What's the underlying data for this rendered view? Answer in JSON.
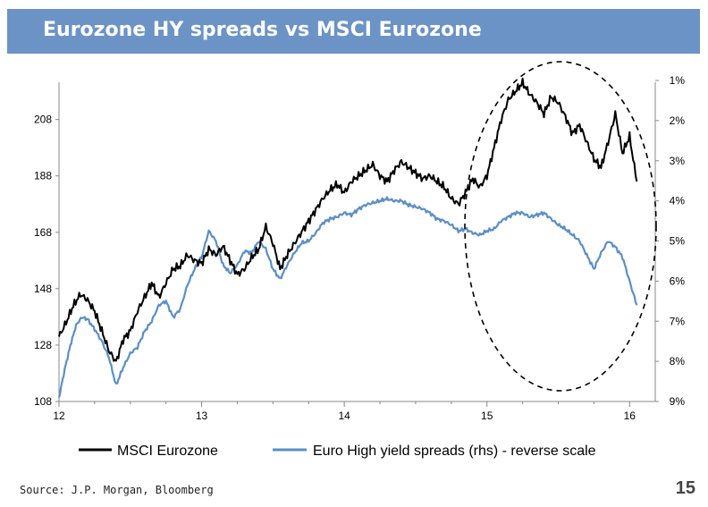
{
  "page": {
    "title": "Eurozone HY spreads vs MSCI Eurozone",
    "source": "Source: J.P. Morgan, Bloomberg",
    "page_number": "15"
  },
  "colors": {
    "title_bar": "#6b93c6",
    "msci": "#000000",
    "spreads": "#5b8fc7"
  },
  "chart_data": {
    "type": "line",
    "title": "Eurozone HY spreads vs MSCI Eurozone",
    "x_tick_labels": [
      "12",
      "13",
      "14",
      "15",
      "16"
    ],
    "x_tick_values": [
      12,
      13,
      14,
      15,
      16
    ],
    "xlim": [
      12,
      16.18
    ],
    "y_left": {
      "tick_labels": [
        "108",
        "128",
        "148",
        "168",
        "188",
        "208"
      ],
      "tick_values": [
        108,
        128,
        148,
        168,
        188,
        208
      ],
      "ylim": [
        108,
        225
      ]
    },
    "y_right": {
      "tick_labels": [
        "1%",
        "2%",
        "3%",
        "4%",
        "5%",
        "6%",
        "7%",
        "8%",
        "9%"
      ],
      "tick_values": [
        1,
        2,
        3,
        4,
        5,
        6,
        7,
        8,
        9
      ],
      "ylim": [
        1,
        9
      ],
      "reversed": true
    },
    "series": [
      {
        "name": "MSCI Eurozone",
        "axis": "left",
        "x": [
          12.0,
          12.05,
          12.1,
          12.15,
          12.2,
          12.25,
          12.3,
          12.35,
          12.4,
          12.45,
          12.5,
          12.55,
          12.6,
          12.65,
          12.7,
          12.75,
          12.8,
          12.85,
          12.9,
          12.95,
          13.0,
          13.05,
          13.1,
          13.15,
          13.2,
          13.25,
          13.3,
          13.35,
          13.4,
          13.45,
          13.5,
          13.55,
          13.6,
          13.65,
          13.7,
          13.75,
          13.8,
          13.85,
          13.9,
          13.95,
          14.0,
          14.05,
          14.1,
          14.15,
          14.2,
          14.25,
          14.3,
          14.35,
          14.4,
          14.45,
          14.5,
          14.55,
          14.6,
          14.65,
          14.7,
          14.75,
          14.8,
          14.85,
          14.9,
          14.95,
          15.0,
          15.05,
          15.1,
          15.15,
          15.2,
          15.25,
          15.3,
          15.35,
          15.4,
          15.45,
          15.5,
          15.55,
          15.6,
          15.65,
          15.7,
          15.75,
          15.8,
          15.85,
          15.9,
          15.95,
          16.0,
          16.05
        ],
        "values": [
          131,
          136,
          142,
          146,
          144,
          140,
          133,
          126,
          122,
          130,
          133,
          140,
          145,
          150,
          145,
          150,
          155,
          156,
          160,
          158,
          157,
          162,
          160,
          163,
          158,
          153,
          155,
          159,
          162,
          170,
          164,
          155,
          160,
          164,
          168,
          172,
          176,
          180,
          183,
          185,
          182,
          186,
          188,
          190,
          192,
          188,
          186,
          190,
          193,
          191,
          189,
          187,
          188,
          186,
          184,
          180,
          178,
          182,
          187,
          184,
          188,
          198,
          208,
          215,
          218,
          221,
          217,
          214,
          210,
          216,
          214,
          209,
          203,
          206,
          200,
          194,
          191,
          200,
          210,
          196,
          202,
          186
        ]
      },
      {
        "name": "Euro High yield spreads (rhs) - reverse scale",
        "axis": "right",
        "x": [
          12.0,
          12.04,
          12.08,
          12.12,
          12.16,
          12.2,
          12.25,
          12.3,
          12.35,
          12.4,
          12.45,
          12.5,
          12.55,
          12.6,
          12.65,
          12.7,
          12.75,
          12.8,
          12.85,
          12.9,
          12.95,
          13.0,
          13.05,
          13.1,
          13.15,
          13.2,
          13.25,
          13.3,
          13.35,
          13.4,
          13.45,
          13.5,
          13.55,
          13.6,
          13.65,
          13.7,
          13.75,
          13.8,
          13.85,
          13.9,
          13.95,
          14.0,
          14.05,
          14.1,
          14.15,
          14.2,
          14.25,
          14.3,
          14.35,
          14.4,
          14.45,
          14.5,
          14.55,
          14.6,
          14.65,
          14.7,
          14.75,
          14.8,
          14.85,
          14.9,
          14.95,
          15.0,
          15.05,
          15.1,
          15.15,
          15.2,
          15.25,
          15.3,
          15.35,
          15.4,
          15.45,
          15.5,
          15.55,
          15.6,
          15.65,
          15.7,
          15.75,
          15.8,
          15.85,
          15.9,
          15.95,
          16.0,
          16.05
        ],
        "values": [
          8.9,
          8.2,
          7.6,
          7.1,
          6.9,
          6.95,
          7.2,
          7.5,
          7.9,
          8.6,
          8.15,
          7.8,
          7.65,
          7.25,
          7.0,
          6.6,
          6.5,
          6.9,
          6.7,
          6.1,
          5.7,
          5.4,
          4.75,
          5.0,
          5.6,
          5.8,
          5.6,
          5.25,
          5.3,
          5.0,
          5.2,
          5.7,
          5.95,
          5.6,
          5.3,
          5.05,
          5.0,
          4.8,
          4.55,
          4.45,
          4.4,
          4.3,
          4.35,
          4.2,
          4.1,
          4.05,
          4.0,
          3.95,
          4.0,
          4.0,
          4.1,
          4.15,
          4.2,
          4.3,
          4.45,
          4.5,
          4.6,
          4.75,
          4.7,
          4.8,
          4.85,
          4.75,
          4.7,
          4.5,
          4.4,
          4.3,
          4.3,
          4.4,
          4.35,
          4.3,
          4.45,
          4.6,
          4.7,
          4.85,
          5.0,
          5.35,
          5.7,
          5.3,
          5.0,
          5.15,
          5.4,
          6.0,
          6.6
        ]
      }
    ],
    "annotations": [
      "dashed ellipse highlighting 2015 onward"
    ],
    "grid": false,
    "legend": "bottom"
  }
}
